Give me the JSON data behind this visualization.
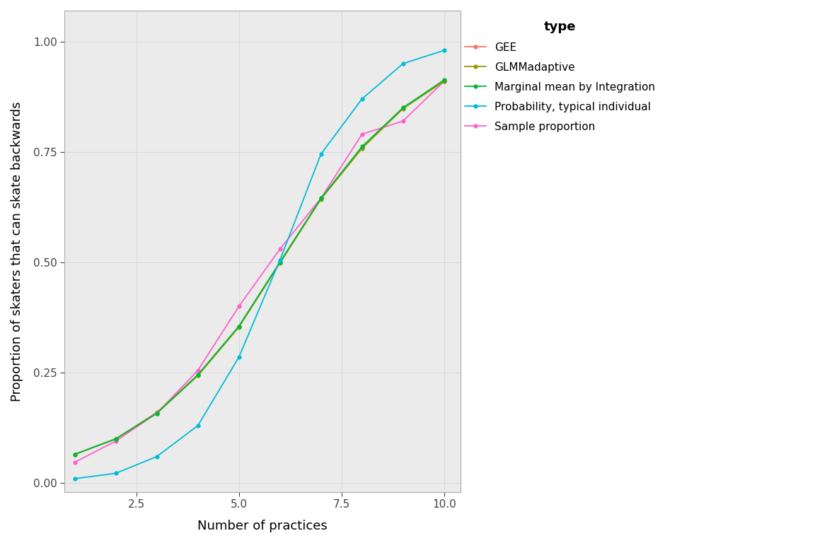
{
  "x": [
    1,
    2,
    3,
    4,
    5,
    6,
    7,
    8,
    9,
    10
  ],
  "GEE": [
    0.065,
    0.1,
    0.16,
    0.245,
    0.355,
    0.5,
    0.645,
    0.76,
    0.85,
    0.91
  ],
  "GLMMadaptive": [
    0.065,
    0.1,
    0.158,
    0.243,
    0.353,
    0.498,
    0.643,
    0.758,
    0.848,
    0.91
  ],
  "Marginal_Integration": [
    0.065,
    0.1,
    0.158,
    0.245,
    0.355,
    0.5,
    0.645,
    0.762,
    0.85,
    0.913
  ],
  "Probability_typical": [
    0.01,
    0.022,
    0.06,
    0.13,
    0.285,
    0.505,
    0.745,
    0.87,
    0.95,
    0.98
  ],
  "Sample_proportion": [
    0.047,
    0.095,
    0.158,
    0.255,
    0.4,
    0.53,
    0.645,
    0.79,
    0.82,
    0.91
  ],
  "GEE_color": "#F8766D",
  "GLMMadaptive_color": "#999900",
  "Marginal_color": "#00BA38",
  "Typical_color": "#00BCD8",
  "Sample_color": "#FF61CC",
  "xlabel": "Number of practices",
  "ylabel": "Proportion of skaters that can skate backwards",
  "legend_title": "type",
  "legend_labels": [
    "GEE",
    "GLMMadaptive",
    "Marginal mean by Integration",
    "Probability, typical individual",
    "Sample proportion"
  ],
  "ylim": [
    -0.02,
    1.07
  ],
  "xlim": [
    0.75,
    10.4
  ],
  "xticks": [
    2.5,
    5.0,
    7.5,
    10.0
  ],
  "yticks": [
    0.0,
    0.25,
    0.5,
    0.75,
    1.0
  ],
  "background_color": "#FFFFFF",
  "grid_color": "#D9D9D9",
  "panel_bg": "#EBEBEB"
}
